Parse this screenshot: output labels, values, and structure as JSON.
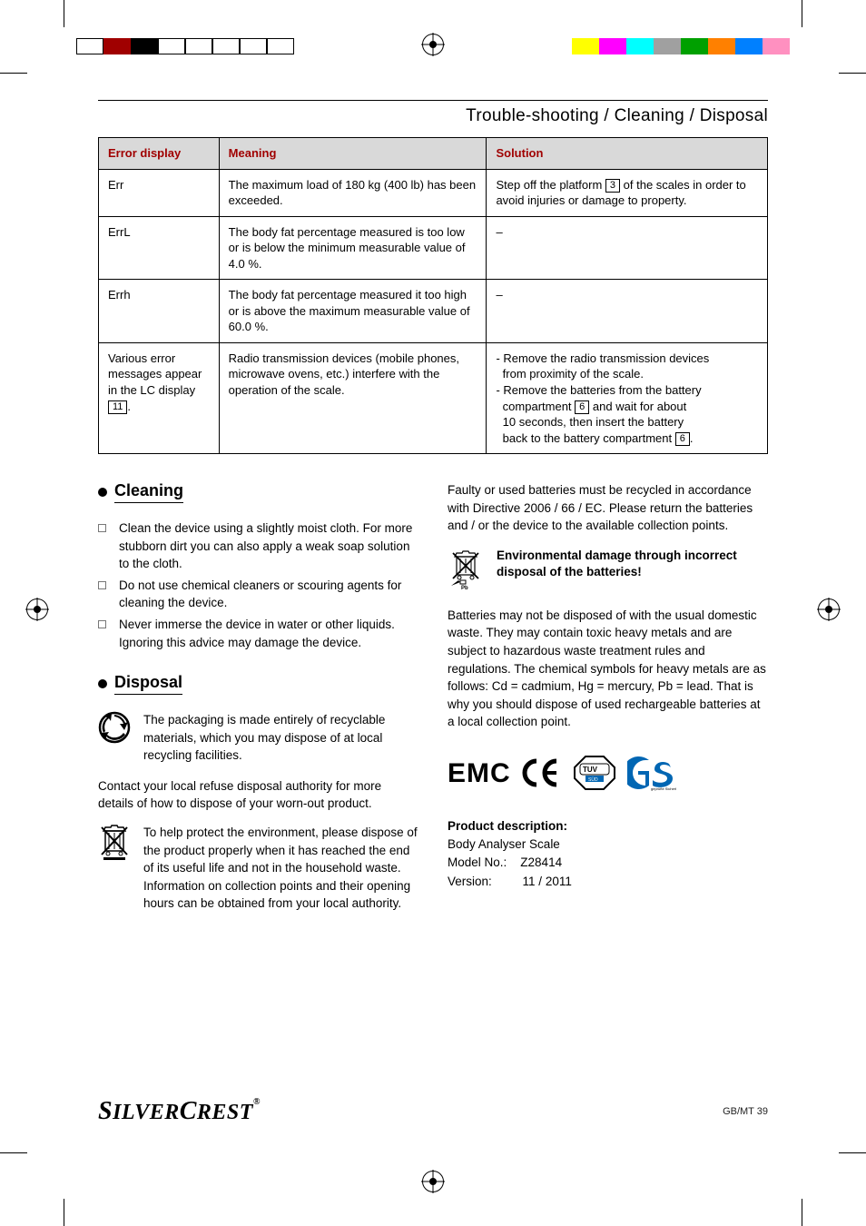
{
  "header": {
    "title": "Trouble-shooting / Cleaning / Disposal"
  },
  "table": {
    "col1_width": "18%",
    "col2_width": "40%",
    "col3_width": "42%",
    "header_bg": "#d9d9d9",
    "header_color": "#a00000",
    "headers": {
      "c1": "Error display",
      "c2": "Meaning",
      "c3": "Solution"
    },
    "rows": [
      {
        "c1": "Err",
        "c2": "The maximum load of 180 kg (400 lb) has been exceeded.",
        "c3_pre": "Step off the platform ",
        "c3_box": "3",
        "c3_post": " of the scales in order to avoid injuries or damage to property."
      },
      {
        "c1": "ErrL",
        "c2": "The body fat percentage measured is too low or is below the minimum measurable value of 4.0 %.",
        "c3": "–"
      },
      {
        "c1": "Errh",
        "c2": "The body fat percentage measured it too high or is above the maximum measurable value of 60.0 %.",
        "c3": "–"
      },
      {
        "c1_pre": "Various error messages appear in the LC display ",
        "c1_box": "11",
        "c1_post": ".",
        "c2": "Radio transmission devices (mobile phones, microwave ovens, etc.) interfere with the operation of the scale.",
        "c3_lines": [
          "- Remove the radio transmission devices from proximity of the scale.",
          "- Remove the batteries from the battery compartment |6| and wait for about 10 seconds, then insert the battery back to the battery compartment |6|."
        ]
      }
    ]
  },
  "cleaning": {
    "title": "Cleaning",
    "items": [
      "Clean the device using a slightly moist cloth. For more stubborn dirt you can also apply a weak soap solution to the cloth.",
      "Do not use chemical cleaners or scouring agents for cleaning the device.",
      "Never immerse the device in water or other liquids. Ignoring this advice may damage the device."
    ]
  },
  "disposal": {
    "title": "Disposal",
    "recycle_text": "The packaging is made entirely of recyclable materials, which you may dispose of at local recycling facilities.",
    "contact_text": "Contact your local refuse disposal authority for more details of how to dispose of your worn-out product.",
    "bin_text": "To help protect the environment, please dispose of the product properly when it has reached the end of its useful life and not in the household waste. Information on collection points and their opening hours can be obtained from your local authority."
  },
  "right_col": {
    "battery_text": "Faulty or used batteries must be recycled in accordance with Directive 2006 / 66 / EC. Please return the batteries and / or the device to the available collection points.",
    "warning_title": "Environmental damage through incorrect disposal of the batteries!",
    "chem_text": "Batteries may not be disposed of with the usual domestic waste. They may contain toxic heavy metals and are subject to hazardous waste treatment rules and regulations. The chemical symbols for heavy metals are as follows: Cd = cadmium, Hg = mercury, Pb = lead. That is why you should dispose of used rechargeable batteries at a local collection point.",
    "emc": "EMC",
    "product_desc": {
      "title": "Product description:",
      "name": "Body Analyser Scale",
      "model_label": "Model No.:",
      "model": "Z28414",
      "version_label": "Version:",
      "version": "11 / 2011"
    }
  },
  "footer": {
    "brand": "SILVERCREST",
    "page": "GB/MT   39"
  },
  "colorbars": {
    "left": [
      "#ffffff",
      "#a00000",
      "#000000",
      "#ffffff",
      "#ffffff",
      "#ffffff",
      "#ffffff",
      "#ffffff"
    ],
    "right": [
      "#ffff00",
      "#ff00ff",
      "#00ffff",
      "#a0a0a0",
      "#00a000",
      "#ff8000",
      "#0080ff",
      "#ff90c0"
    ]
  }
}
